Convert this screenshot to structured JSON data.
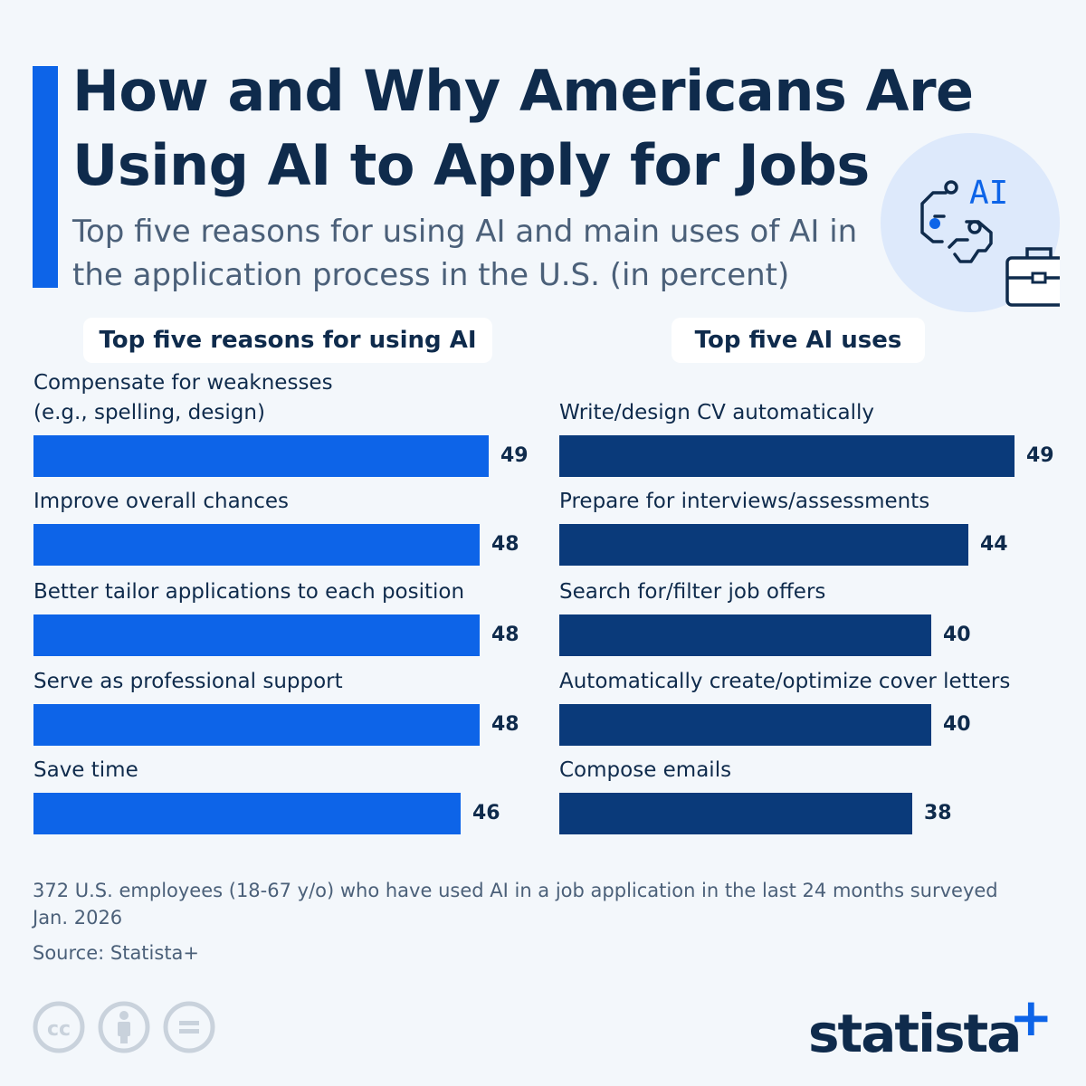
{
  "header": {
    "title": "How and Why Americans Are Using AI to Apply for Jobs",
    "subtitle": "Top five reasons for using AI and main uses of AI in the application process in the U.S. (in percent)",
    "icon": "ai-briefcase-icon",
    "icon_text": "AI"
  },
  "colors": {
    "accent": "#0d64e8",
    "reasons_bar": "#0d64e8",
    "uses_bar": "#0a3a7a",
    "text": "#0f2b4c"
  },
  "chart_data": [
    {
      "type": "bar",
      "orientation": "horizontal",
      "title": "Top five reasons for using AI",
      "categories": [
        "Compensate for weaknesses\n(e.g., spelling, design)",
        "Improve overall chances",
        "Better tailor applications to each position",
        "Serve as professional support",
        "Save time"
      ],
      "values": [
        49,
        48,
        48,
        48,
        46
      ],
      "xlim": [
        0,
        49
      ],
      "grid": false,
      "legend": "none"
    },
    {
      "type": "bar",
      "orientation": "horizontal",
      "title": "Top five AI uses",
      "categories": [
        "Write/design CV automatically",
        "Prepare for interviews/assessments",
        "Search for/filter job offers",
        "Automatically create/optimize cover letters",
        "Compose emails"
      ],
      "values": [
        49,
        44,
        40,
        40,
        38
      ],
      "xlim": [
        0,
        49
      ],
      "grid": false,
      "legend": "none"
    }
  ],
  "footer": {
    "note": "372 U.S. employees (18-67 y/o) who have used AI in a job application in the last 24 months surveyed Jan. 2026",
    "source": "Source: Statista+",
    "license_icons": [
      "cc-icon",
      "attribution-icon",
      "no-derivatives-icon"
    ],
    "brand": "statista",
    "brand_mark": "+"
  }
}
